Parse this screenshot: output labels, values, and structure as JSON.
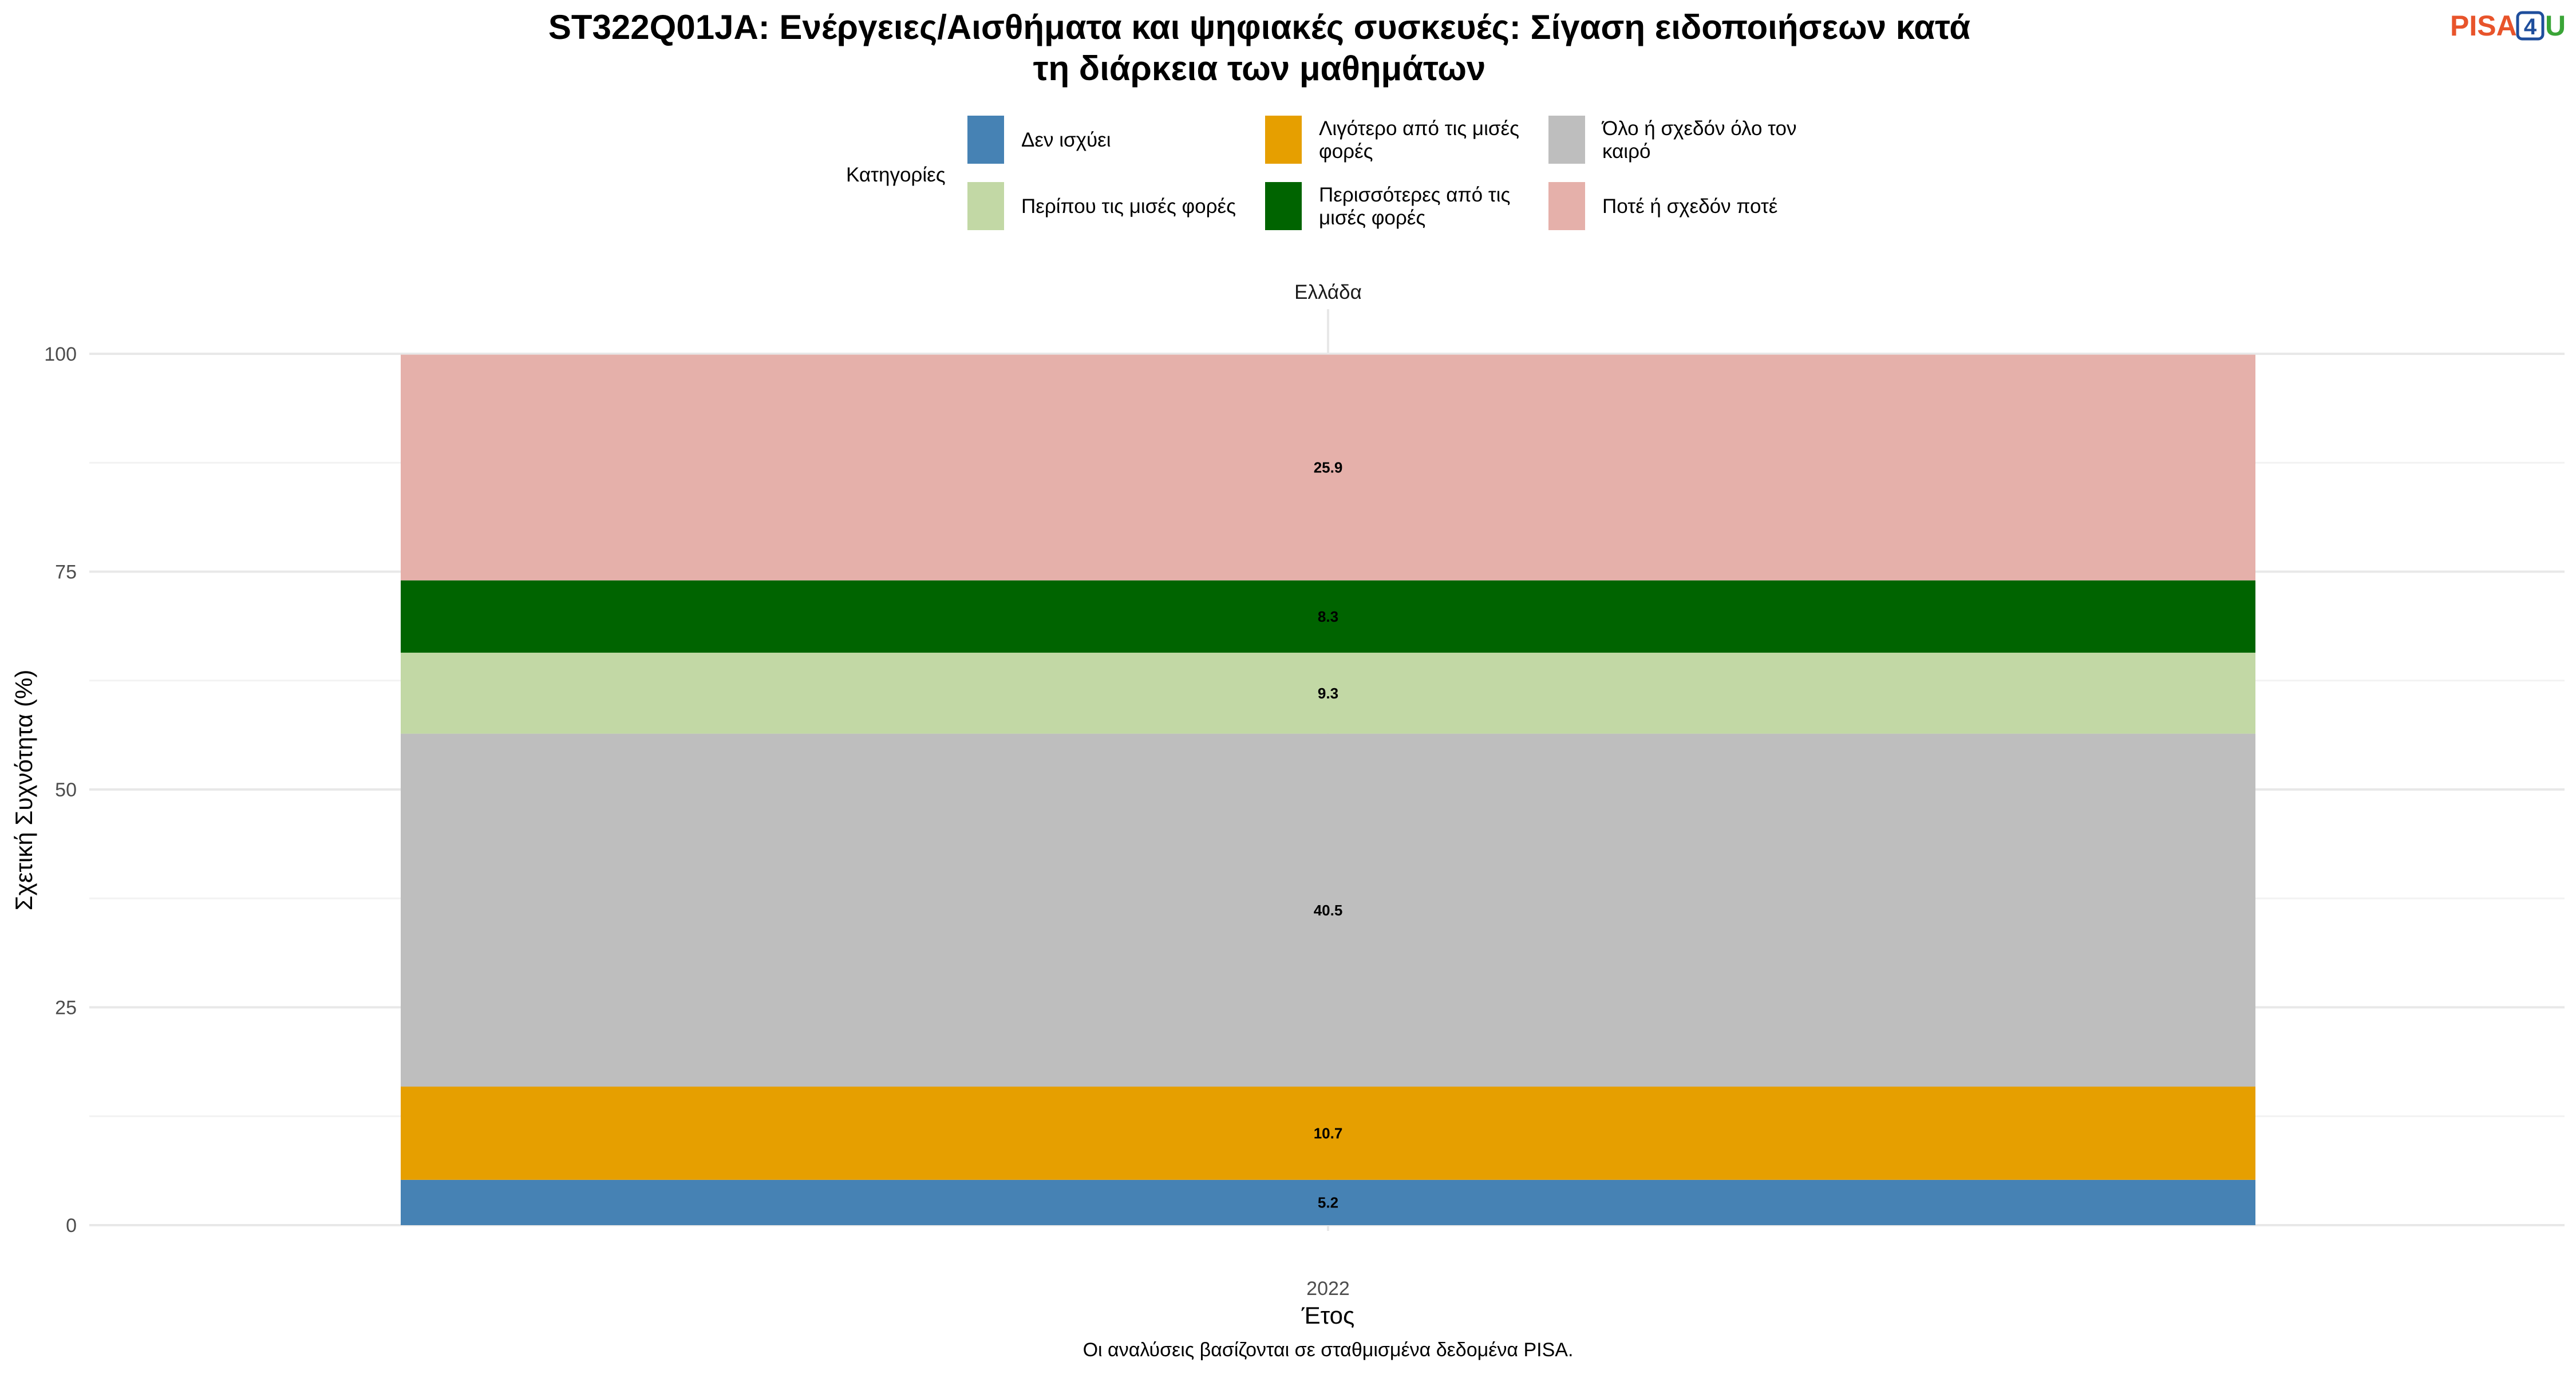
{
  "title_lines": [
    "ST322Q01JA: Ενέργειες/Αισθήματα και ψηφιακές συσκευές: Σίγαση ειδοποιήσεων κατά",
    "τη διάρκεια των μαθημάτων"
  ],
  "logo": {
    "pisa": "PISA",
    "four": "4",
    "u": "U"
  },
  "legend": {
    "title": "Κατηγορίες",
    "placement": "top"
  },
  "facet_label": "Ελλάδα",
  "caption": "Οι αναλύσεις βασίζονται σε σταθμισμένα δεδομένα PISA.",
  "chart_data": {
    "type": "bar",
    "stacked": true,
    "categories": [
      "2022"
    ],
    "xlabel": "Έτος",
    "ylabel": "Σχετική Συχνότητα (%)",
    "ylim": [
      0,
      100
    ],
    "yticks": [
      0,
      25,
      50,
      75,
      100
    ],
    "grid": true,
    "series": [
      {
        "name": "Δεν ισχύει",
        "color": "#4682b4",
        "values": [
          5.2
        ],
        "label": "5.2"
      },
      {
        "name": "Λιγότερο από τις μισές φορές",
        "color": "#e69f00",
        "values": [
          10.7
        ],
        "label": "10.7"
      },
      {
        "name": "Όλο ή σχεδόν όλο τον καιρό",
        "color": "#bebebe",
        "values": [
          40.5
        ],
        "label": "40.5"
      },
      {
        "name": "Περίπου τις μισές φορές",
        "color": "#c2d8a5",
        "values": [
          9.3
        ],
        "label": "9.3"
      },
      {
        "name": "Περισσότερες από τις μισές φορές",
        "color": "#006400",
        "values": [
          8.3
        ],
        "label": "8.3"
      },
      {
        "name": "Ποτέ ή σχεδόν ποτέ",
        "color": "#e5b0aa",
        "values": [
          25.9
        ],
        "label": "25.9"
      }
    ],
    "legend_rows": [
      [
        {
          "series": 0,
          "lines": [
            "Δεν ισχύει"
          ]
        },
        {
          "series": 1,
          "lines": [
            "Λιγότερο από τις μισές",
            "φορές"
          ]
        },
        {
          "series": 2,
          "lines": [
            "Όλο ή σχεδόν όλο τον",
            "καιρό"
          ]
        }
      ],
      [
        {
          "series": 3,
          "lines": [
            "Περίπου τις μισές φορές"
          ]
        },
        {
          "series": 4,
          "lines": [
            "Περισσότερες από τις",
            "μισές φορές"
          ]
        },
        {
          "series": 5,
          "lines": [
            "Ποτέ ή σχεδόν ποτέ"
          ]
        }
      ]
    ]
  }
}
